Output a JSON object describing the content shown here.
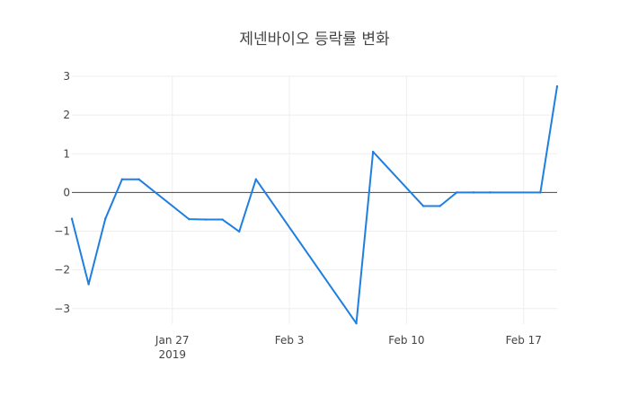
{
  "chart_data": {
    "type": "line",
    "title": "제넨바이오 등락률 변화",
    "xlabel": "",
    "ylabel": "",
    "ylim": [
      -3.4,
      3.0
    ],
    "grid": true,
    "colors": {
      "line": "#1f7fe0",
      "zeroline": "#444444",
      "grid": "#eeeeee"
    },
    "x": [
      "2019-01-21",
      "2019-01-22",
      "2019-01-23",
      "2019-01-24",
      "2019-01-25",
      "2019-01-28",
      "2019-01-29",
      "2019-01-30",
      "2019-01-31",
      "2019-02-01",
      "2019-02-07",
      "2019-02-08",
      "2019-02-11",
      "2019-02-12",
      "2019-02-13",
      "2019-02-14",
      "2019-02-15",
      "2019-02-18",
      "2019-02-19"
    ],
    "series": [
      {
        "name": "",
        "values": [
          -0.68,
          -2.37,
          -0.68,
          0.34,
          0.34,
          -0.69,
          -0.7,
          -0.7,
          -1.01,
          0.34,
          -3.38,
          1.05,
          -0.35,
          -0.35,
          0.0,
          0.0,
          0.0,
          0.0,
          2.74
        ]
      }
    ],
    "x_ticks": [
      {
        "date": "2019-01-27",
        "label": "Jan 27",
        "sub": "2019"
      },
      {
        "date": "2019-02-03",
        "label": "Feb 3",
        "sub": ""
      },
      {
        "date": "2019-02-10",
        "label": "Feb 10",
        "sub": ""
      },
      {
        "date": "2019-02-17",
        "label": "Feb 17",
        "sub": ""
      }
    ],
    "y_ticks": [
      {
        "value": 3,
        "label": "3"
      },
      {
        "value": 2,
        "label": "2"
      },
      {
        "value": 1,
        "label": "1"
      },
      {
        "value": 0,
        "label": "0"
      },
      {
        "value": -1,
        "label": "−1"
      },
      {
        "value": -2,
        "label": "−2"
      },
      {
        "value": -3,
        "label": "−3"
      }
    ]
  }
}
